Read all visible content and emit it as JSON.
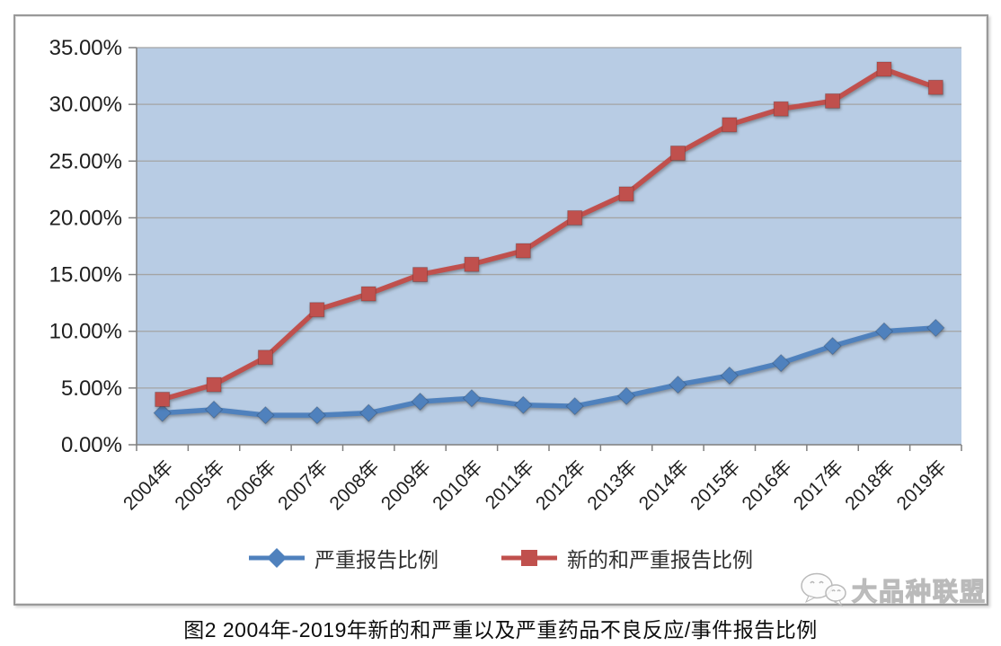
{
  "page": {
    "caption": "图2 2004年-2019年新的和严重以及严重药品不良反应/事件报告比例",
    "watermark": "大品种联盟",
    "watermark_icon": "wechat-chat-bubbles"
  },
  "chart_data": {
    "type": "line",
    "title": "图2 2004年-2019年新的和严重以及严重药品不良反应/事件报告比例",
    "xlabel": "",
    "ylabel": "",
    "categories": [
      "2004年",
      "2005年",
      "2006年",
      "2007年",
      "2008年",
      "2009年",
      "2010年",
      "2011年",
      "2012年",
      "2013年",
      "2014年",
      "2015年",
      "2016年",
      "2017年",
      "2018年",
      "2019年"
    ],
    "series": [
      {
        "name": "严重报告比例",
        "color": "#4f81bd",
        "marker": "diamond",
        "values": [
          2.8,
          3.1,
          2.6,
          2.6,
          2.8,
          3.8,
          4.1,
          3.5,
          3.4,
          4.3,
          5.3,
          6.1,
          7.2,
          8.7,
          10.0,
          10.3
        ]
      },
      {
        "name": "新的和严重报告比例",
        "color": "#c0504d",
        "marker": "square",
        "values": [
          4.0,
          5.3,
          7.7,
          11.9,
          13.3,
          15.0,
          15.9,
          17.1,
          20.0,
          22.1,
          25.7,
          28.2,
          29.6,
          30.3,
          33.1,
          31.5
        ]
      }
    ],
    "ylim": [
      0,
      35
    ],
    "ytick_step": 5,
    "ytick_labels": [
      "0.00%",
      "5.00%",
      "10.00%",
      "15.00%",
      "20.00%",
      "25.00%",
      "30.00%",
      "35.00%"
    ],
    "values_unit": "%",
    "grid": true,
    "legend_position": "bottom",
    "colors": {
      "plot_bg": "#b8cce4",
      "grid": "#a4a4a4",
      "axis": "#7f7f7f",
      "frame_border": "#999999"
    }
  }
}
